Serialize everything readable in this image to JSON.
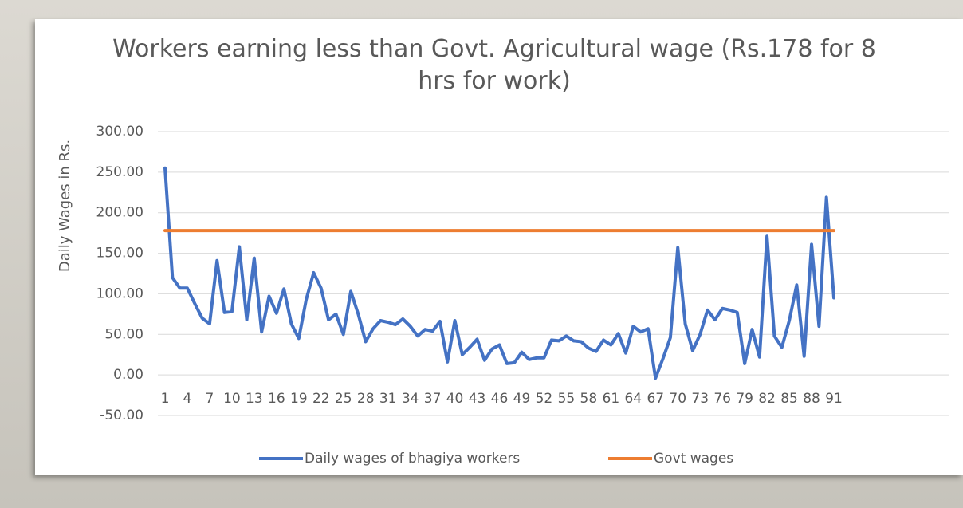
{
  "chart_data": {
    "type": "line",
    "title": "Workers earning less than Govt. Agricultural wage (Rs.178 for 8 hrs for work)",
    "y_label": "Daily Wages in Rs.",
    "categories": [
      1,
      null,
      null,
      4,
      null,
      null,
      7,
      null,
      null,
      10,
      null,
      null,
      13,
      null,
      null,
      16,
      null,
      null,
      19,
      null,
      null,
      22,
      null,
      null,
      25,
      null,
      null,
      28,
      null,
      null,
      31,
      null,
      null,
      34,
      null,
      null,
      37,
      null,
      null,
      40,
      null,
      null,
      43,
      null,
      null,
      46,
      null,
      null,
      49,
      null,
      null,
      52,
      null,
      null,
      55,
      null,
      null,
      58,
      null,
      null,
      61,
      null,
      null,
      64,
      null,
      null,
      67,
      null,
      null,
      70,
      null,
      null,
      73,
      null,
      null,
      76,
      null,
      null,
      79,
      null,
      null,
      82,
      null,
      null,
      85,
      null,
      null,
      88,
      null,
      null,
      91
    ],
    "series": [
      {
        "name": "Daily wages of bhagiya workers",
        "color": "#4472c4",
        "values": [
          255,
          120,
          107,
          107,
          88,
          70,
          63,
          141,
          77,
          78,
          158,
          68,
          144,
          53,
          97,
          76,
          106,
          63,
          45,
          93,
          126,
          107,
          68,
          75,
          50,
          103,
          75,
          41,
          57,
          67,
          65,
          62,
          69,
          60,
          48,
          56,
          54,
          66,
          16,
          67,
          25,
          34,
          44,
          18,
          32,
          37,
          14,
          15,
          28,
          19,
          21,
          21,
          43,
          42,
          48,
          42,
          41,
          33,
          29,
          43,
          37,
          51,
          27,
          60,
          53,
          57,
          -4,
          20,
          46,
          157,
          63,
          30,
          50,
          80,
          68,
          82,
          80,
          77,
          14,
          56,
          22,
          171,
          48,
          34,
          67,
          111,
          23,
          161,
          60,
          219,
          95
        ]
      },
      {
        "name": "Govt wages",
        "color": "#ed7d31",
        "values": [
          178,
          178,
          178,
          178,
          178,
          178,
          178,
          178,
          178,
          178,
          178,
          178,
          178,
          178,
          178,
          178,
          178,
          178,
          178,
          178,
          178,
          178,
          178,
          178,
          178,
          178,
          178,
          178,
          178,
          178,
          178,
          178,
          178,
          178,
          178,
          178,
          178,
          178,
          178,
          178,
          178,
          178,
          178,
          178,
          178,
          178,
          178,
          178,
          178,
          178,
          178,
          178,
          178,
          178,
          178,
          178,
          178,
          178,
          178,
          178,
          178,
          178,
          178,
          178,
          178,
          178,
          178,
          178,
          178,
          178,
          178,
          178,
          178,
          178,
          178,
          178,
          178,
          178,
          178,
          178,
          178,
          178,
          178,
          178,
          178,
          178,
          178,
          178,
          178,
          178,
          178
        ]
      }
    ],
    "ylim": [
      -50,
      300
    ],
    "yticks": [
      {
        "value": -50,
        "label": "-50.00"
      },
      {
        "value": 0,
        "label": "0.00"
      },
      {
        "value": 50,
        "label": "50.00"
      },
      {
        "value": 100,
        "label": "100.00"
      },
      {
        "value": 150,
        "label": "150.00"
      },
      {
        "value": 200,
        "label": "200.00"
      },
      {
        "value": 250,
        "label": "250.00"
      },
      {
        "value": 300,
        "label": "300.00"
      }
    ],
    "grid": true,
    "legend": "bottom"
  }
}
